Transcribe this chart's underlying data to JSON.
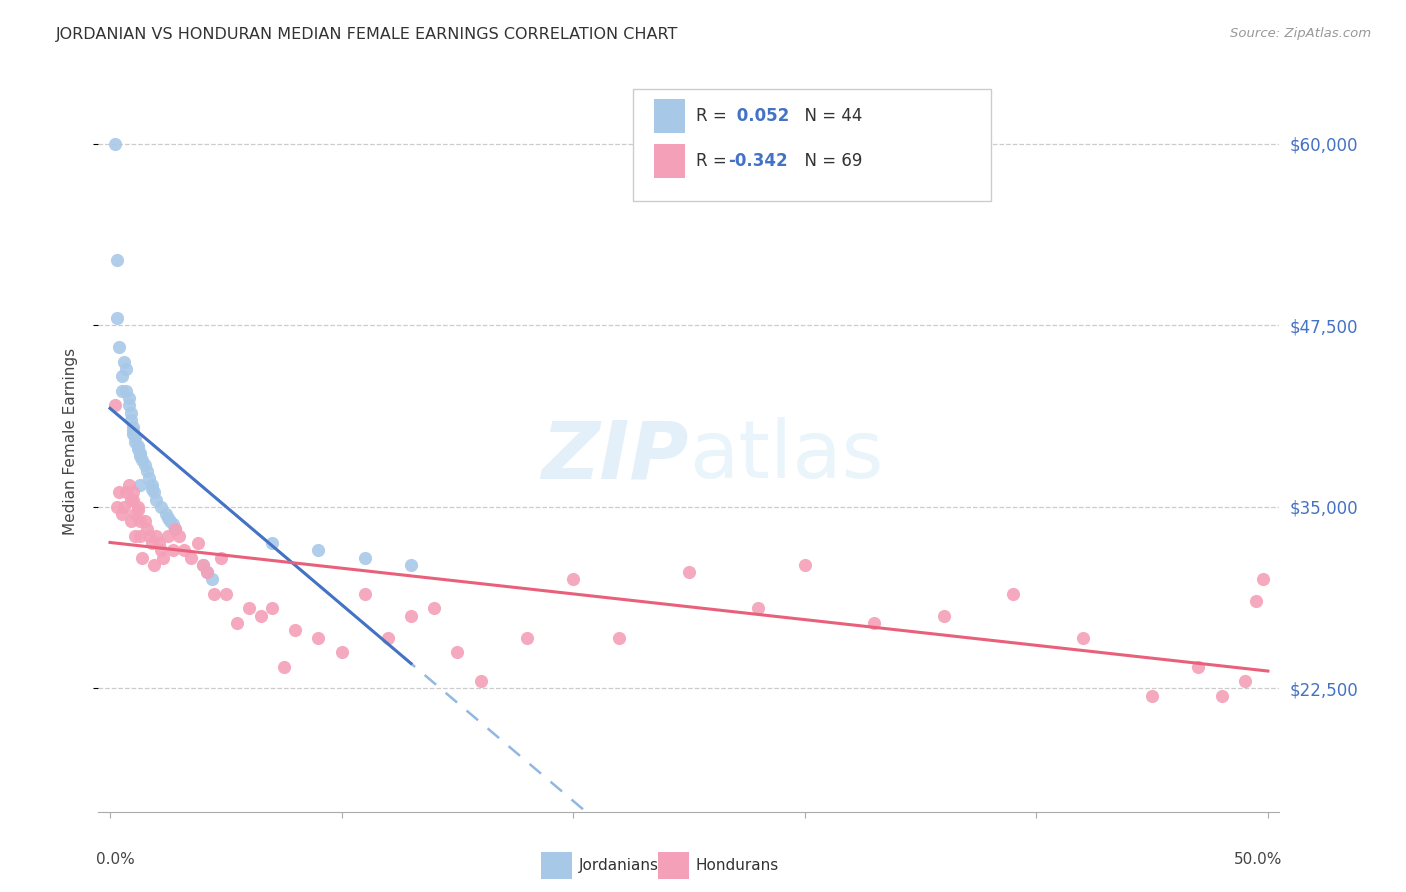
{
  "title": "JORDANIAN VS HONDURAN MEDIAN FEMALE EARNINGS CORRELATION CHART",
  "source": "Source: ZipAtlas.com",
  "ylabel": "Median Female Earnings",
  "y_ticks": [
    22500,
    35000,
    47500,
    60000
  ],
  "y_tick_labels": [
    "$22,500",
    "$35,000",
    "$47,500",
    "$60,000"
  ],
  "xlim": [
    -0.005,
    0.505
  ],
  "ylim": [
    14000,
    65000
  ],
  "jordan_color": "#a8c8e8",
  "honduran_color": "#f4a0b8",
  "jordan_line_color": "#4472c4",
  "honduran_line_color": "#e8607a",
  "jordan_dashed_color": "#90b8e0",
  "background_color": "#ffffff",
  "jordan_points_x": [
    0.002,
    0.003,
    0.003,
    0.004,
    0.005,
    0.005,
    0.006,
    0.007,
    0.007,
    0.008,
    0.008,
    0.009,
    0.009,
    0.01,
    0.01,
    0.01,
    0.011,
    0.011,
    0.012,
    0.012,
    0.013,
    0.013,
    0.013,
    0.014,
    0.015,
    0.016,
    0.017,
    0.018,
    0.018,
    0.019,
    0.02,
    0.022,
    0.024,
    0.025,
    0.026,
    0.027,
    0.028,
    0.04,
    0.042,
    0.044,
    0.07,
    0.09,
    0.11,
    0.13
  ],
  "jordan_points_y": [
    60000,
    52000,
    48000,
    46000,
    44000,
    43000,
    45000,
    44500,
    43000,
    42500,
    42000,
    41500,
    41000,
    40500,
    40200,
    40000,
    39800,
    39500,
    39200,
    39000,
    38700,
    38500,
    36500,
    38200,
    37900,
    37500,
    37000,
    36500,
    36200,
    36000,
    35500,
    35000,
    34500,
    34200,
    34000,
    33800,
    33500,
    31000,
    30500,
    30000,
    32500,
    32000,
    31500,
    31000
  ],
  "honduran_points_x": [
    0.002,
    0.003,
    0.004,
    0.005,
    0.006,
    0.007,
    0.008,
    0.009,
    0.009,
    0.01,
    0.01,
    0.011,
    0.011,
    0.012,
    0.012,
    0.013,
    0.013,
    0.014,
    0.015,
    0.016,
    0.017,
    0.018,
    0.019,
    0.02,
    0.021,
    0.022,
    0.023,
    0.025,
    0.027,
    0.028,
    0.03,
    0.032,
    0.035,
    0.038,
    0.04,
    0.042,
    0.045,
    0.048,
    0.05,
    0.055,
    0.06,
    0.065,
    0.07,
    0.075,
    0.08,
    0.09,
    0.1,
    0.11,
    0.12,
    0.13,
    0.14,
    0.15,
    0.16,
    0.18,
    0.2,
    0.22,
    0.25,
    0.28,
    0.3,
    0.33,
    0.36,
    0.39,
    0.42,
    0.45,
    0.47,
    0.48,
    0.49,
    0.495,
    0.498
  ],
  "honduran_points_y": [
    42000,
    35000,
    36000,
    34500,
    35000,
    36000,
    36500,
    35500,
    34000,
    36000,
    35500,
    34500,
    33000,
    35000,
    34800,
    34000,
    33000,
    31500,
    34000,
    33500,
    33000,
    32500,
    31000,
    33000,
    32500,
    32000,
    31500,
    33000,
    32000,
    33500,
    33000,
    32000,
    31500,
    32500,
    31000,
    30500,
    29000,
    31500,
    29000,
    27000,
    28000,
    27500,
    28000,
    24000,
    26500,
    26000,
    25000,
    29000,
    26000,
    27500,
    28000,
    25000,
    23000,
    26000,
    30000,
    26000,
    30500,
    28000,
    31000,
    27000,
    27500,
    29000,
    26000,
    22000,
    24000,
    22000,
    23000,
    28500,
    30000
  ],
  "legend_jordan_r": "R = ",
  "legend_jordan_r_val": " 0.052",
  "legend_jordan_n": "N = 44",
  "legend_honduran_r": "R = ",
  "legend_honduran_r_val": "-0.342",
  "legend_honduran_n": "N = 69"
}
